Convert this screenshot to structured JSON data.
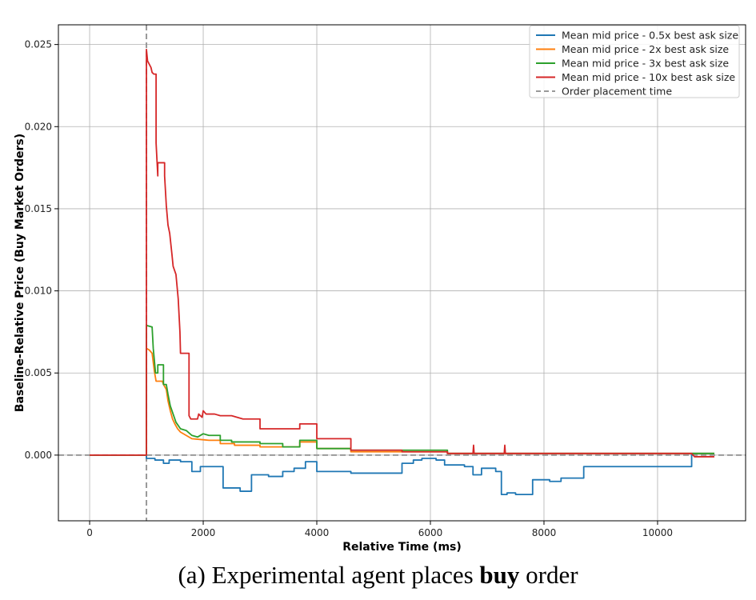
{
  "chart_data": {
    "type": "line",
    "title": "",
    "xlabel": "Relative Time (ms)",
    "ylabel": "Baseline-Relative Price (Buy Market Orders)",
    "xlim": [
      -550,
      11550
    ],
    "ylim": [
      -0.004,
      0.0262
    ],
    "x_ticks": [
      0,
      2000,
      4000,
      6000,
      8000,
      10000
    ],
    "x_tick_labels": [
      "0",
      "2000",
      "4000",
      "6000",
      "8000",
      "10000"
    ],
    "y_ticks": [
      0.0,
      0.005,
      0.01,
      0.015,
      0.02,
      0.025
    ],
    "y_tick_labels": [
      "0.000",
      "0.005",
      "0.010",
      "0.015",
      "0.020",
      "0.025"
    ],
    "grid": true,
    "legend_position": "top-right",
    "series": [
      {
        "name": "Mean mid price - 0.5x best ask size",
        "color": "#1f77b4",
        "points": [
          [
            0,
            0
          ],
          [
            1000,
            0
          ],
          [
            1000,
            -0.0002
          ],
          [
            1150,
            -0.0002
          ],
          [
            1150,
            -0.0003
          ],
          [
            1300,
            -0.0003
          ],
          [
            1300,
            -0.0005
          ],
          [
            1400,
            -0.0005
          ],
          [
            1400,
            -0.0003
          ],
          [
            1600,
            -0.0003
          ],
          [
            1600,
            -0.0004
          ],
          [
            1800,
            -0.0004
          ],
          [
            1800,
            -0.001
          ],
          [
            1950,
            -0.001
          ],
          [
            1950,
            -0.0007
          ],
          [
            2350,
            -0.0007
          ],
          [
            2350,
            -0.002
          ],
          [
            2650,
            -0.002
          ],
          [
            2650,
            -0.0022
          ],
          [
            2850,
            -0.0022
          ],
          [
            2850,
            -0.0012
          ],
          [
            3150,
            -0.0012
          ],
          [
            3150,
            -0.0013
          ],
          [
            3400,
            -0.0013
          ],
          [
            3400,
            -0.001
          ],
          [
            3600,
            -0.001
          ],
          [
            3600,
            -0.0008
          ],
          [
            3800,
            -0.0008
          ],
          [
            3800,
            -0.0004
          ],
          [
            4000,
            -0.0004
          ],
          [
            4000,
            -0.001
          ],
          [
            4600,
            -0.001
          ],
          [
            4600,
            -0.0011
          ],
          [
            5500,
            -0.0011
          ],
          [
            5500,
            -0.0005
          ],
          [
            5700,
            -0.0005
          ],
          [
            5700,
            -0.0003
          ],
          [
            5850,
            -0.0003
          ],
          [
            5850,
            -0.0002
          ],
          [
            6100,
            -0.0002
          ],
          [
            6100,
            -0.0003
          ],
          [
            6250,
            -0.0003
          ],
          [
            6250,
            -0.0006
          ],
          [
            6600,
            -0.0006
          ],
          [
            6600,
            -0.0007
          ],
          [
            6750,
            -0.0007
          ],
          [
            6750,
            -0.0012
          ],
          [
            6900,
            -0.0012
          ],
          [
            6900,
            -0.0008
          ],
          [
            7150,
            -0.0008
          ],
          [
            7150,
            -0.001
          ],
          [
            7250,
            -0.001
          ],
          [
            7250,
            -0.0024
          ],
          [
            7350,
            -0.0024
          ],
          [
            7350,
            -0.0023
          ],
          [
            7500,
            -0.0023
          ],
          [
            7500,
            -0.0024
          ],
          [
            7800,
            -0.0024
          ],
          [
            7800,
            -0.0015
          ],
          [
            8100,
            -0.0015
          ],
          [
            8100,
            -0.0016
          ],
          [
            8300,
            -0.0016
          ],
          [
            8300,
            -0.0014
          ],
          [
            8700,
            -0.0014
          ],
          [
            8700,
            -0.0007
          ],
          [
            10600,
            -0.0007
          ],
          [
            10600,
            0.0001
          ],
          [
            11000,
            0.0001
          ]
        ]
      },
      {
        "name": "Mean mid price - 2x best ask size",
        "color": "#ff7f0e",
        "points": [
          [
            0,
            0
          ],
          [
            1000,
            0
          ],
          [
            1000,
            0.0065
          ],
          [
            1050,
            0.0064
          ],
          [
            1100,
            0.0062
          ],
          [
            1140,
            0.0051
          ],
          [
            1170,
            0.0045
          ],
          [
            1280,
            0.0045
          ],
          [
            1300,
            0.0043
          ],
          [
            1350,
            0.004
          ],
          [
            1380,
            0.0033
          ],
          [
            1420,
            0.0027
          ],
          [
            1460,
            0.0022
          ],
          [
            1500,
            0.0019
          ],
          [
            1550,
            0.0016
          ],
          [
            1600,
            0.0014
          ],
          [
            1700,
            0.0012
          ],
          [
            1800,
            0.001
          ],
          [
            2100,
            0.0009
          ],
          [
            2300,
            0.0009
          ],
          [
            2300,
            0.0007
          ],
          [
            2550,
            0.0007
          ],
          [
            2550,
            0.0006
          ],
          [
            3000,
            0.0006
          ],
          [
            3000,
            0.0005
          ],
          [
            3700,
            0.0005
          ],
          [
            3700,
            0.0008
          ],
          [
            4000,
            0.0008
          ],
          [
            4000,
            0.0004
          ],
          [
            4600,
            0.0004
          ],
          [
            4600,
            0.0002
          ],
          [
            6300,
            0.0002
          ],
          [
            6300,
            0.0001
          ],
          [
            11000,
            0.0001
          ]
        ]
      },
      {
        "name": "Mean mid price - 3x best ask size",
        "color": "#2ca02c",
        "points": [
          [
            0,
            0
          ],
          [
            1000,
            0
          ],
          [
            1000,
            0.0079
          ],
          [
            1100,
            0.0078
          ],
          [
            1120,
            0.0065
          ],
          [
            1160,
            0.005
          ],
          [
            1200,
            0.005
          ],
          [
            1200,
            0.0055
          ],
          [
            1300,
            0.0055
          ],
          [
            1300,
            0.0043
          ],
          [
            1350,
            0.0043
          ],
          [
            1380,
            0.0037
          ],
          [
            1420,
            0.003
          ],
          [
            1470,
            0.0025
          ],
          [
            1520,
            0.002
          ],
          [
            1600,
            0.0016
          ],
          [
            1700,
            0.0015
          ],
          [
            1800,
            0.0012
          ],
          [
            1900,
            0.0011
          ],
          [
            2000,
            0.0013
          ],
          [
            2100,
            0.0012
          ],
          [
            2300,
            0.0012
          ],
          [
            2300,
            0.0009
          ],
          [
            2500,
            0.0009
          ],
          [
            2500,
            0.0008
          ],
          [
            3000,
            0.0008
          ],
          [
            3000,
            0.0007
          ],
          [
            3400,
            0.0007
          ],
          [
            3400,
            0.0005
          ],
          [
            3700,
            0.0005
          ],
          [
            3700,
            0.0009
          ],
          [
            4000,
            0.0009
          ],
          [
            4000,
            0.0004
          ],
          [
            4600,
            0.0004
          ],
          [
            4600,
            0.0003
          ],
          [
            6300,
            0.0003
          ],
          [
            6300,
            0.0001
          ],
          [
            11000,
            0.0001
          ]
        ]
      },
      {
        "name": "Mean mid price - 10x best ask size",
        "color": "#d62728",
        "points": [
          [
            0,
            0
          ],
          [
            1000,
            0
          ],
          [
            1000,
            0.0247
          ],
          [
            1020,
            0.024
          ],
          [
            1080,
            0.0236
          ],
          [
            1100,
            0.0233
          ],
          [
            1130,
            0.0232
          ],
          [
            1170,
            0.0232
          ],
          [
            1170,
            0.019
          ],
          [
            1200,
            0.017
          ],
          [
            1200,
            0.0178
          ],
          [
            1320,
            0.0178
          ],
          [
            1320,
            0.017
          ],
          [
            1350,
            0.0152
          ],
          [
            1380,
            0.014
          ],
          [
            1410,
            0.0135
          ],
          [
            1450,
            0.0122
          ],
          [
            1470,
            0.0115
          ],
          [
            1520,
            0.011
          ],
          [
            1560,
            0.0095
          ],
          [
            1590,
            0.0075
          ],
          [
            1600,
            0.0062
          ],
          [
            1750,
            0.0062
          ],
          [
            1750,
            0.0024
          ],
          [
            1780,
            0.0022
          ],
          [
            1900,
            0.0022
          ],
          [
            1920,
            0.0025
          ],
          [
            1980,
            0.0023
          ],
          [
            2000,
            0.0027
          ],
          [
            2050,
            0.0025
          ],
          [
            2200,
            0.0025
          ],
          [
            2300,
            0.0024
          ],
          [
            2500,
            0.0024
          ],
          [
            2700,
            0.0022
          ],
          [
            3000,
            0.0022
          ],
          [
            3000,
            0.0016
          ],
          [
            3700,
            0.0016
          ],
          [
            3700,
            0.0019
          ],
          [
            4000,
            0.0019
          ],
          [
            4000,
            0.001
          ],
          [
            4600,
            0.001
          ],
          [
            4600,
            0.0003
          ],
          [
            5500,
            0.0003
          ],
          [
            5500,
            0.0002
          ],
          [
            6300,
            0.0002
          ],
          [
            6300,
            0.0001
          ],
          [
            6750,
            0.0001
          ],
          [
            6760,
            0.0006
          ],
          [
            6770,
            0.0001
          ],
          [
            7300,
            0.0001
          ],
          [
            7310,
            0.0006
          ],
          [
            7320,
            0.0001
          ],
          [
            10600,
            0.0001
          ],
          [
            10650,
            -0.0001
          ],
          [
            11000,
            -0.0001
          ]
        ]
      }
    ],
    "reference_lines": [
      {
        "name": "Order placement time",
        "orientation": "vertical",
        "x": 1000,
        "color": "#999999",
        "dash": true
      },
      {
        "name": "",
        "orientation": "horizontal",
        "y": 0.0,
        "color": "#999999",
        "dash": true
      }
    ]
  },
  "caption": {
    "prefix": "(a) Experimental agent places ",
    "bold": "buy",
    "suffix": " order"
  }
}
